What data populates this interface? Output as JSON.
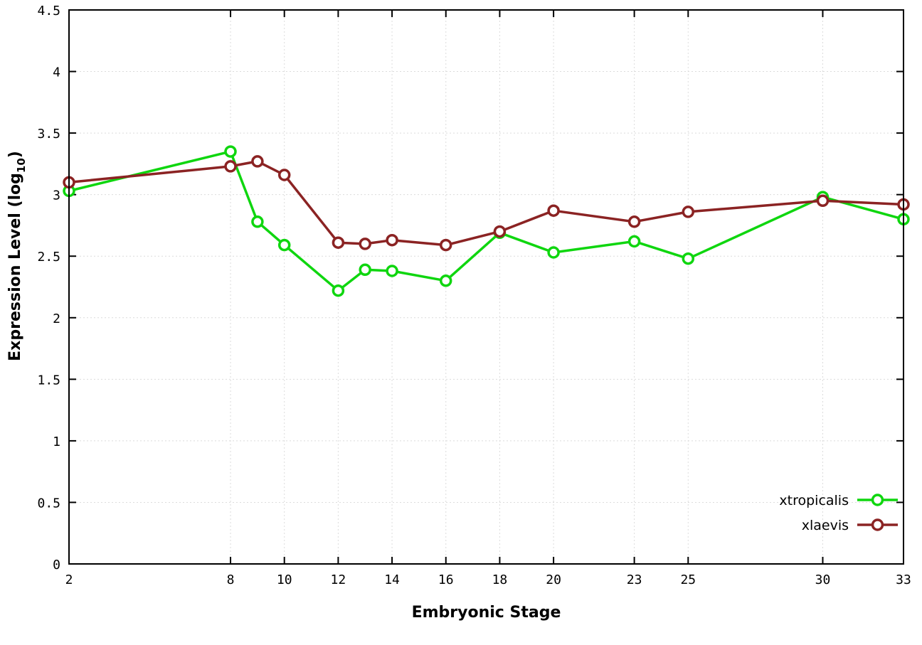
{
  "chart_data": {
    "type": "line",
    "title": "",
    "xlabel": "Embryonic Stage",
    "ylabel": "Expression Level (log10)",
    "ylabel_main": "Expression Level (log",
    "ylabel_subscript": "10",
    "ylabel_close": ")",
    "xlim": [
      2,
      33
    ],
    "ylim": [
      0,
      4.5
    ],
    "grid": true,
    "legend_position": "bottom-right",
    "x_ticks": [
      2,
      8,
      10,
      12,
      14,
      16,
      18,
      20,
      23,
      25,
      30,
      33
    ],
    "x_tick_labels": [
      "2",
      "8",
      "10",
      "12",
      "14",
      "16",
      "18",
      "20",
      "23",
      "25",
      "30",
      "33"
    ],
    "y_ticks": [
      0,
      0.5,
      1,
      1.5,
      2,
      2.5,
      3,
      3.5,
      4,
      4.5
    ],
    "y_tick_labels": [
      "0",
      "0.5",
      "1",
      "1.5",
      "2",
      "2.5",
      "3",
      "3.5",
      "4",
      "4.5"
    ],
    "colors": {
      "background": "#ffffff",
      "axis": "#000000",
      "grid": "#dcdcdc"
    },
    "series": [
      {
        "name": "xtropicalis",
        "color": "#0fd60f",
        "x": [
          2,
          8,
          9,
          10,
          12,
          13,
          14,
          16,
          18,
          20,
          23,
          25,
          30,
          33
        ],
        "y": [
          3.03,
          3.35,
          2.78,
          2.59,
          2.22,
          2.39,
          2.38,
          2.3,
          2.69,
          2.53,
          2.62,
          2.48,
          2.98,
          2.8
        ]
      },
      {
        "name": "xlaevis",
        "color": "#8b2323",
        "x": [
          2,
          8,
          9,
          10,
          12,
          13,
          14,
          16,
          18,
          20,
          23,
          25,
          30,
          33
        ],
        "y": [
          3.1,
          3.23,
          3.27,
          3.16,
          2.61,
          2.6,
          2.63,
          2.59,
          2.7,
          2.87,
          2.78,
          2.86,
          2.95,
          2.92
        ]
      }
    ]
  }
}
